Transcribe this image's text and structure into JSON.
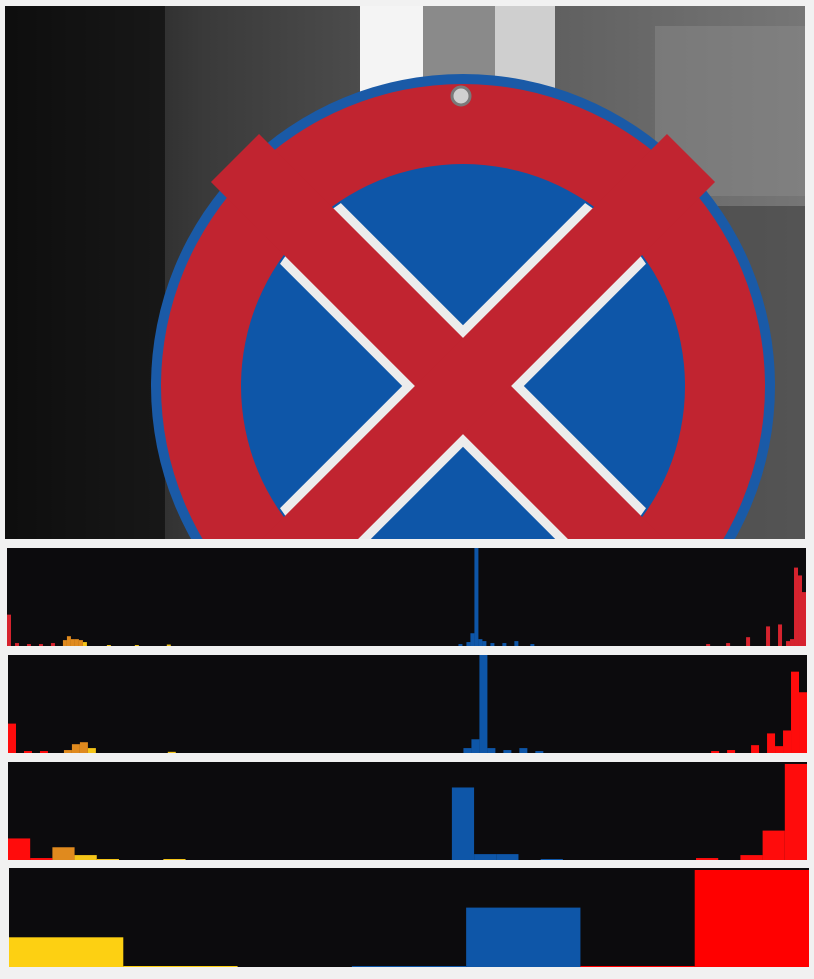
{
  "photo": {
    "subject": "no-stopping-sign-icon",
    "colors": {
      "ring_red": "#c12430",
      "border_blue": "#1a5aa7",
      "field_blue": "#0e56a8",
      "cross_white": "#ececec",
      "pole_white": "#f5f5f5"
    }
  },
  "chart_data": [
    {
      "type": "bar",
      "bins": 200,
      "colors": {
        "red": "#d6232e",
        "orange": "#e08a1e",
        "yellow": "#f5c518",
        "blue": "#0e56a8"
      },
      "bars": [
        {
          "bin": 0,
          "value": 0.32,
          "color": "red"
        },
        {
          "bin": 2,
          "value": 0.03,
          "color": "red"
        },
        {
          "bin": 5,
          "value": 0.02,
          "color": "red"
        },
        {
          "bin": 8,
          "value": 0.02,
          "color": "red"
        },
        {
          "bin": 11,
          "value": 0.03,
          "color": "red"
        },
        {
          "bin": 14,
          "value": 0.06,
          "color": "orange"
        },
        {
          "bin": 15,
          "value": 0.1,
          "color": "orange"
        },
        {
          "bin": 16,
          "value": 0.07,
          "color": "orange"
        },
        {
          "bin": 17,
          "value": 0.07,
          "color": "orange"
        },
        {
          "bin": 18,
          "value": 0.06,
          "color": "orange"
        },
        {
          "bin": 19,
          "value": 0.04,
          "color": "yellow"
        },
        {
          "bin": 25,
          "value": 0.01,
          "color": "yellow"
        },
        {
          "bin": 32,
          "value": 0.01,
          "color": "yellow"
        },
        {
          "bin": 40,
          "value": 0.015,
          "color": "yellow"
        },
        {
          "bin": 113,
          "value": 0.02,
          "color": "blue"
        },
        {
          "bin": 115,
          "value": 0.04,
          "color": "blue"
        },
        {
          "bin": 116,
          "value": 0.13,
          "color": "blue"
        },
        {
          "bin": 117,
          "value": 1.0,
          "color": "blue"
        },
        {
          "bin": 118,
          "value": 0.07,
          "color": "blue"
        },
        {
          "bin": 119,
          "value": 0.05,
          "color": "blue"
        },
        {
          "bin": 121,
          "value": 0.03,
          "color": "blue"
        },
        {
          "bin": 124,
          "value": 0.03,
          "color": "blue"
        },
        {
          "bin": 127,
          "value": 0.05,
          "color": "blue"
        },
        {
          "bin": 131,
          "value": 0.02,
          "color": "blue"
        },
        {
          "bin": 175,
          "value": 0.02,
          "color": "red"
        },
        {
          "bin": 180,
          "value": 0.03,
          "color": "red"
        },
        {
          "bin": 185,
          "value": 0.09,
          "color": "red"
        },
        {
          "bin": 190,
          "value": 0.2,
          "color": "red"
        },
        {
          "bin": 193,
          "value": 0.22,
          "color": "red"
        },
        {
          "bin": 195,
          "value": 0.05,
          "color": "red"
        },
        {
          "bin": 196,
          "value": 0.07,
          "color": "red"
        },
        {
          "bin": 197,
          "value": 0.8,
          "color": "red"
        },
        {
          "bin": 198,
          "value": 0.72,
          "color": "red"
        },
        {
          "bin": 199,
          "value": 0.55,
          "color": "red"
        }
      ]
    },
    {
      "type": "bar",
      "bins": 100,
      "colors": {
        "red": "#ff0c0c",
        "orange": "#e08a1e",
        "yellow": "#f5c518",
        "blue": "#0e56a8"
      },
      "bars": [
        {
          "bin": 0,
          "value": 0.3,
          "color": "red"
        },
        {
          "bin": 2,
          "value": 0.02,
          "color": "red"
        },
        {
          "bin": 4,
          "value": 0.02,
          "color": "red"
        },
        {
          "bin": 7,
          "value": 0.03,
          "color": "orange"
        },
        {
          "bin": 8,
          "value": 0.09,
          "color": "orange"
        },
        {
          "bin": 9,
          "value": 0.11,
          "color": "orange"
        },
        {
          "bin": 10,
          "value": 0.05,
          "color": "yellow"
        },
        {
          "bin": 20,
          "value": 0.012,
          "color": "yellow"
        },
        {
          "bin": 57,
          "value": 0.05,
          "color": "blue"
        },
        {
          "bin": 58,
          "value": 0.14,
          "color": "blue"
        },
        {
          "bin": 59,
          "value": 1.0,
          "color": "blue"
        },
        {
          "bin": 60,
          "value": 0.05,
          "color": "blue"
        },
        {
          "bin": 62,
          "value": 0.03,
          "color": "blue"
        },
        {
          "bin": 64,
          "value": 0.05,
          "color": "blue"
        },
        {
          "bin": 66,
          "value": 0.02,
          "color": "blue"
        },
        {
          "bin": 88,
          "value": 0.02,
          "color": "red"
        },
        {
          "bin": 90,
          "value": 0.03,
          "color": "red"
        },
        {
          "bin": 93,
          "value": 0.08,
          "color": "red"
        },
        {
          "bin": 95,
          "value": 0.2,
          "color": "red"
        },
        {
          "bin": 96,
          "value": 0.07,
          "color": "red"
        },
        {
          "bin": 97,
          "value": 0.23,
          "color": "red"
        },
        {
          "bin": 98,
          "value": 0.83,
          "color": "red"
        },
        {
          "bin": 99,
          "value": 0.62,
          "color": "red"
        }
      ]
    },
    {
      "type": "bar",
      "bins": 36,
      "colors": {
        "red": "#ff0c0c",
        "orange": "#e08a1e",
        "yellow": "#f5c518",
        "blue": "#0e56a8"
      },
      "bars": [
        {
          "bin": 0,
          "value": 0.22,
          "color": "red"
        },
        {
          "bin": 1,
          "value": 0.02,
          "color": "red"
        },
        {
          "bin": 2,
          "value": 0.13,
          "color": "orange"
        },
        {
          "bin": 3,
          "value": 0.05,
          "color": "yellow"
        },
        {
          "bin": 4,
          "value": 0.01,
          "color": "yellow"
        },
        {
          "bin": 7,
          "value": 0.01,
          "color": "yellow"
        },
        {
          "bin": 20,
          "value": 0.74,
          "color": "blue"
        },
        {
          "bin": 21,
          "value": 0.06,
          "color": "blue"
        },
        {
          "bin": 22,
          "value": 0.06,
          "color": "blue"
        },
        {
          "bin": 24,
          "value": 0.01,
          "color": "blue"
        },
        {
          "bin": 31,
          "value": 0.02,
          "color": "red"
        },
        {
          "bin": 33,
          "value": 0.05,
          "color": "red"
        },
        {
          "bin": 34,
          "value": 0.3,
          "color": "red"
        },
        {
          "bin": 35,
          "value": 0.98,
          "color": "red"
        }
      ]
    },
    {
      "type": "bar",
      "bins": 7,
      "colors": {
        "red": "#ff0000",
        "orange": "#e08a1e",
        "yellow": "#fdd012",
        "blue": "#0e56a8"
      },
      "bars": [
        {
          "bin": 0,
          "value": 0.3,
          "color": "yellow"
        },
        {
          "bin": 1,
          "value": 0.005,
          "color": "yellow"
        },
        {
          "bin": 3,
          "value": 0.01,
          "color": "blue"
        },
        {
          "bin": 4,
          "value": 0.6,
          "color": "blue"
        },
        {
          "bin": 5,
          "value": 0.005,
          "color": "red"
        },
        {
          "bin": 6,
          "value": 0.98,
          "color": "red"
        }
      ]
    }
  ]
}
